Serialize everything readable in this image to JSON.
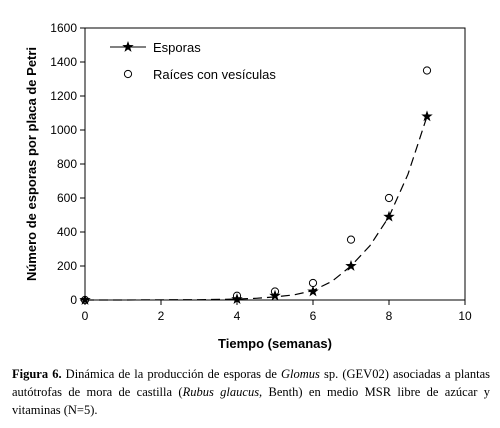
{
  "chart_data": {
    "type": "scatter",
    "xlabel": "Tiempo (semanas)",
    "ylabel": "Número de esporas por placa de Petri",
    "xlim": [
      0,
      10
    ],
    "ylim": [
      0,
      1600
    ],
    "x_ticks": [
      0,
      2,
      4,
      6,
      8,
      10
    ],
    "y_ticks": [
      0,
      200,
      400,
      600,
      800,
      1000,
      1200,
      1400,
      1600
    ],
    "legend_position": "top-left",
    "series": [
      {
        "name": "Esporas",
        "marker": "star",
        "line": "dashed fit",
        "points": [
          {
            "x": 0,
            "y": 0
          },
          {
            "x": 4,
            "y": 5
          },
          {
            "x": 5,
            "y": 25
          },
          {
            "x": 6,
            "y": 50
          },
          {
            "x": 7,
            "y": 200
          },
          {
            "x": 8,
            "y": 490
          },
          {
            "x": 9,
            "y": 1080
          }
        ]
      },
      {
        "name": "Raíces con vesículas",
        "marker": "open-circle",
        "points": [
          {
            "x": 0,
            "y": 0
          },
          {
            "x": 4,
            "y": 25
          },
          {
            "x": 5,
            "y": 50
          },
          {
            "x": 6,
            "y": 100
          },
          {
            "x": 7,
            "y": 355
          },
          {
            "x": 8,
            "y": 600
          },
          {
            "x": 9,
            "y": 1350
          }
        ]
      }
    ],
    "fit_curve": {
      "x": [
        0,
        1,
        2,
        3,
        4,
        4.5,
        5,
        5.5,
        6,
        6.5,
        7,
        7.5,
        8,
        8.5,
        9
      ],
      "y": [
        0,
        0,
        1,
        2,
        5,
        10,
        18,
        30,
        55,
        110,
        200,
        320,
        490,
        740,
        1080
      ]
    }
  },
  "caption": {
    "label": "Figura 6.",
    "t1": " Dinámica de la producción de esporas de ",
    "genus": "Glomus",
    "t2": " sp. (GEV02) asociadas a plantas autótrofas de mora de castilla (",
    "species": "Rubus glaucus,",
    "t3": " Benth) en medio MSR libre de azúcar y vitaminas (N=5)."
  }
}
